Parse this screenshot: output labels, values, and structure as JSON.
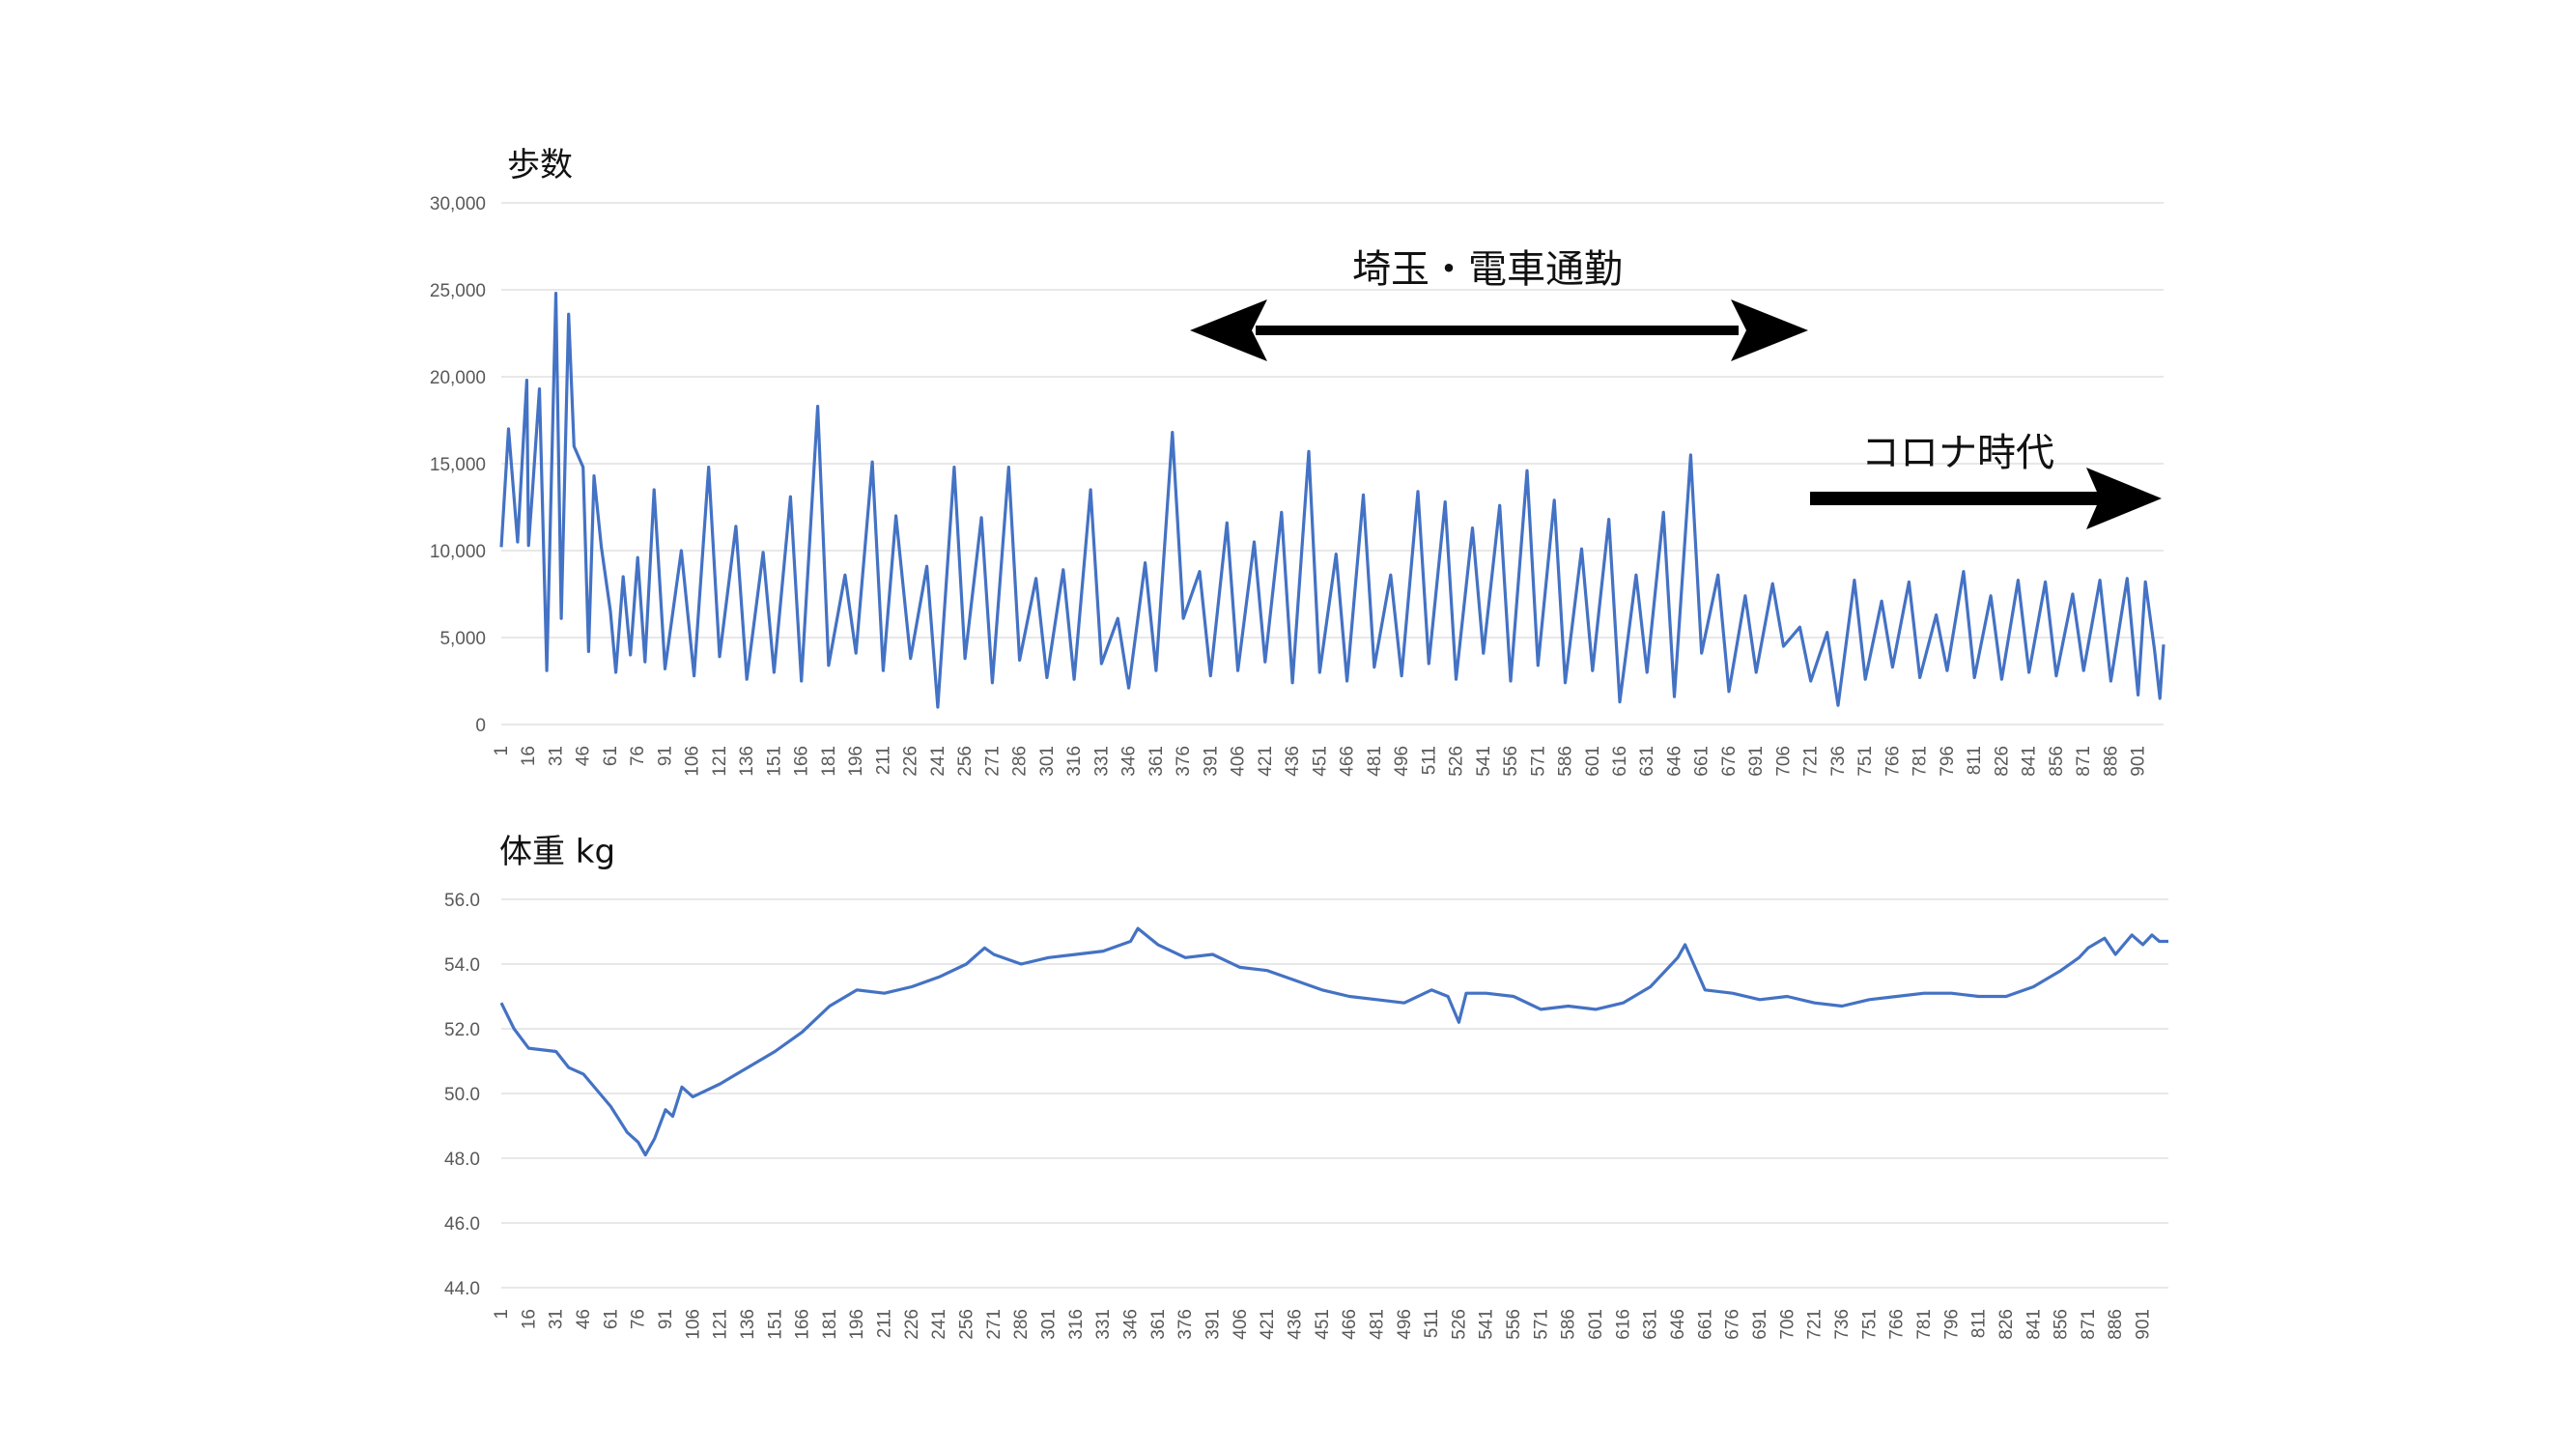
{
  "chart_data": [
    {
      "type": "line",
      "title": "歩数",
      "xlabel": "",
      "ylabel": "",
      "ylim": [
        0,
        30000
      ],
      "yticks": [
        "0",
        "5,000",
        "10,000",
        "15,000",
        "20,000",
        "25,000",
        "30,000"
      ],
      "x_range": [
        1,
        915
      ],
      "x_tick_labels": [
        "1",
        "16",
        "31",
        "46",
        "61",
        "76",
        "91",
        "106",
        "121",
        "136",
        "151",
        "166",
        "181",
        "196",
        "211",
        "226",
        "241",
        "256",
        "271",
        "286",
        "301",
        "316",
        "331",
        "346",
        "361",
        "376",
        "391",
        "406",
        "421",
        "436",
        "451",
        "466",
        "481",
        "496",
        "511",
        "526",
        "541",
        "556",
        "571",
        "586",
        "601",
        "616",
        "631",
        "646",
        "661",
        "676",
        "691",
        "706",
        "721",
        "736",
        "751",
        "766",
        "781",
        "796",
        "811",
        "826",
        "841",
        "856",
        "871",
        "886",
        "901"
      ],
      "grid": true,
      "series": [
        {
          "color": "#4472c4",
          "x": [
            1,
            5,
            10,
            15,
            16,
            18,
            22,
            26,
            31,
            34,
            38,
            41,
            46,
            49,
            52,
            56,
            61,
            64,
            68,
            72,
            76,
            80,
            85,
            91,
            100,
            107,
            115,
            121,
            130,
            136,
            145,
            151,
            160,
            166,
            175,
            181,
            190,
            196,
            205,
            211,
            218,
            226,
            235,
            241,
            250,
            256,
            265,
            271,
            280,
            286,
            295,
            301,
            310,
            316,
            325,
            331,
            340,
            346,
            355,
            361,
            370,
            376,
            385,
            391,
            400,
            406,
            415,
            421,
            430,
            436,
            445,
            451,
            460,
            466,
            475,
            481,
            490,
            496,
            505,
            511,
            520,
            526,
            535,
            541,
            550,
            556,
            565,
            571,
            580,
            586,
            595,
            601,
            610,
            616,
            625,
            631,
            640,
            646,
            655,
            661,
            670,
            676,
            685,
            691,
            700,
            706,
            715,
            721,
            730,
            736,
            745,
            751,
            760,
            766,
            775,
            781,
            790,
            796,
            805,
            811,
            820,
            826,
            835,
            841,
            850,
            856,
            865,
            871,
            880,
            886,
            895,
            901,
            905,
            910,
            913,
            915
          ],
          "values": [
            10200,
            17000,
            10500,
            19800,
            10300,
            13200,
            19300,
            3100,
            24800,
            6100,
            23600,
            16000,
            14800,
            4200,
            14300,
            10200,
            6500,
            3000,
            8500,
            4000,
            9600,
            3600,
            13500,
            3200,
            10000,
            2800,
            14800,
            3900,
            11400,
            2600,
            9900,
            3000,
            13100,
            2500,
            18300,
            3400,
            8600,
            4100,
            15100,
            3100,
            12000,
            3800,
            9100,
            1000,
            14800,
            3800,
            11900,
            2400,
            14800,
            3700,
            8400,
            2700,
            8900,
            2600,
            13500,
            3500,
            6100,
            2100,
            9300,
            3100,
            16800,
            6100,
            8800,
            2800,
            11600,
            3100,
            10500,
            3600,
            12200,
            2400,
            15700,
            3000,
            9800,
            2500,
            13200,
            3300,
            8600,
            2800,
            13400,
            3500,
            12800,
            2600,
            11300,
            4100,
            12600,
            2500,
            14600,
            3400,
            12900,
            2400,
            10100,
            3100,
            11800,
            1300,
            8600,
            3000,
            12200,
            1600,
            15500,
            4100,
            8600,
            1900,
            7400,
            3000,
            8100,
            4500,
            5600,
            2500,
            5300,
            1100,
            8300,
            2600,
            7100,
            3300,
            8200,
            2700,
            6300,
            3100,
            8800,
            2700,
            7400,
            2600,
            8300,
            3000,
            8200,
            2800,
            7500,
            3100,
            8300,
            2500,
            8400,
            1700,
            8200,
            4300,
            1500,
            4600
          ]
        }
      ],
      "annotations": [
        {
          "text": "埼玉・電車通勤",
          "arrow": "both",
          "from": 376,
          "to": 706
        },
        {
          "text": "コロナ時代",
          "arrow": "right",
          "from": 706,
          "to": 915
        }
      ]
    },
    {
      "type": "line",
      "title": "体重 kg",
      "xlabel": "",
      "ylabel": "",
      "ylim": [
        44.0,
        56.0
      ],
      "yticks": [
        "44.0",
        "46.0",
        "48.0",
        "50.0",
        "52.0",
        "54.0",
        "56.0"
      ],
      "x_range": [
        1,
        915
      ],
      "x_tick_labels": [
        "1",
        "16",
        "31",
        "46",
        "61",
        "76",
        "91",
        "106",
        "121",
        "136",
        "151",
        "166",
        "181",
        "196",
        "211",
        "226",
        "241",
        "256",
        "271",
        "286",
        "301",
        "316",
        "331",
        "346",
        "361",
        "376",
        "391",
        "406",
        "421",
        "436",
        "451",
        "466",
        "481",
        "496",
        "511",
        "526",
        "541",
        "556",
        "571",
        "586",
        "601",
        "616",
        "631",
        "646",
        "661",
        "676",
        "691",
        "706",
        "721",
        "736",
        "751",
        "766",
        "781",
        "796",
        "811",
        "826",
        "841",
        "856",
        "871",
        "886",
        "901"
      ],
      "grid": true,
      "series": [
        {
          "color": "#4472c4",
          "x": [
            1,
            8,
            16,
            31,
            38,
            46,
            55,
            61,
            70,
            76,
            80,
            85,
            91,
            95,
            100,
            106,
            121,
            136,
            151,
            166,
            181,
            196,
            211,
            226,
            241,
            256,
            266,
            271,
            286,
            301,
            316,
            331,
            346,
            350,
            361,
            376,
            391,
            406,
            421,
            436,
            451,
            466,
            481,
            496,
            511,
            520,
            526,
            530,
            541,
            556,
            571,
            586,
            601,
            616,
            631,
            641,
            646,
            650,
            661,
            676,
            691,
            706,
            721,
            736,
            751,
            766,
            781,
            796,
            811,
            826,
            841,
            856,
            866,
            871,
            880,
            886,
            895,
            901,
            906,
            910,
            915
          ],
          "values": [
            52.8,
            52.0,
            51.4,
            51.3,
            50.8,
            50.6,
            50.0,
            49.6,
            48.8,
            48.5,
            48.1,
            48.6,
            49.5,
            49.3,
            50.2,
            49.9,
            50.3,
            50.8,
            51.3,
            51.9,
            52.7,
            53.2,
            53.1,
            53.3,
            53.6,
            54.0,
            54.5,
            54.3,
            54.0,
            54.2,
            54.3,
            54.4,
            54.7,
            55.1,
            54.6,
            54.2,
            54.3,
            53.9,
            53.8,
            53.5,
            53.2,
            53.0,
            52.9,
            52.8,
            53.2,
            53.0,
            52.2,
            53.1,
            53.1,
            53.0,
            52.6,
            52.7,
            52.6,
            52.8,
            53.3,
            53.9,
            54.2,
            54.6,
            53.2,
            53.1,
            52.9,
            53.0,
            52.8,
            52.7,
            52.9,
            53.0,
            53.1,
            53.1,
            53.0,
            53.0,
            53.3,
            53.8,
            54.2,
            54.5,
            54.8,
            54.3,
            54.9,
            54.6,
            54.9,
            54.7,
            54.7
          ]
        }
      ]
    }
  ]
}
